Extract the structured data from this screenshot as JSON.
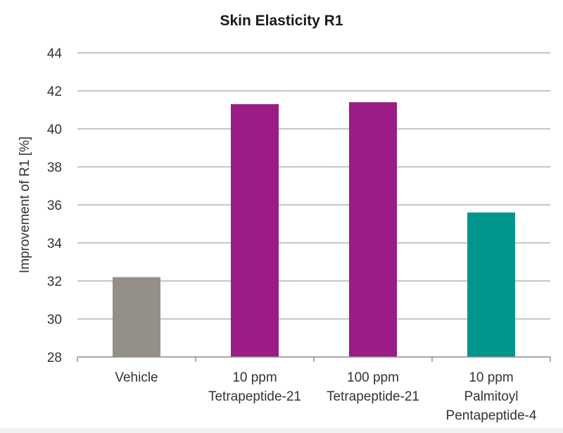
{
  "chart_data": {
    "type": "bar",
    "title": "Skin Elasticity R1",
    "xlabel": "",
    "ylabel": "Improvement of R1 [%]",
    "ylim": [
      28,
      44
    ],
    "yticks": [
      28,
      30,
      32,
      34,
      36,
      38,
      40,
      42,
      44
    ],
    "grid": true,
    "legend": null,
    "categories": [
      "Vehicle",
      "10 ppm Tetrapeptide-21",
      "100 ppm Tetrapeptide-21",
      "10 ppm Palmitoyl Pentapeptide-4"
    ],
    "category_label_lines": [
      [
        "Vehicle"
      ],
      [
        "10 ppm",
        "Tetrapeptide-21"
      ],
      [
        "100 ppm",
        "Tetrapeptide-21"
      ],
      [
        "10 ppm",
        "Palmitoyl",
        "Pentapeptide-4"
      ]
    ],
    "values": [
      32.2,
      41.3,
      41.4,
      35.6
    ],
    "colors": [
      "#958f89",
      "#9a1c84",
      "#9a1c84",
      "#00968e"
    ]
  },
  "style": {
    "grid_color": "#b3b3b3",
    "axis_color": "#8c8c8c",
    "tick_label_color": "#333333"
  }
}
